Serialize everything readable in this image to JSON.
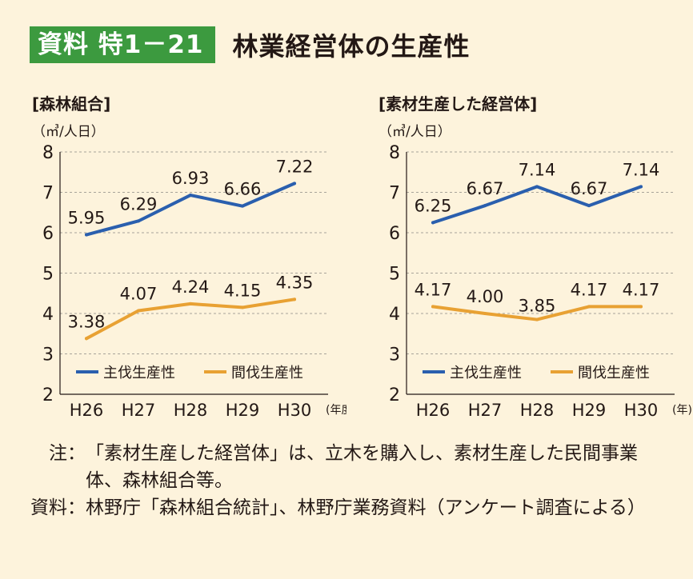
{
  "header": {
    "badge": "資料 特1－21",
    "title": "林業経営体の生産性"
  },
  "colors": {
    "badge_bg": "#3c9a3f",
    "background": "#fdf3dc",
    "series_main": "#2a5fae",
    "series_thinning": "#e8a133"
  },
  "chart_data": [
    {
      "type": "line",
      "title": "[森林組合]",
      "ylabel": "（㎥/人日）",
      "xunit": "(年度)",
      "categories": [
        "H26",
        "H27",
        "H28",
        "H29",
        "H30"
      ],
      "ylim": [
        2,
        8
      ],
      "yticks": [
        "2",
        "3",
        "4",
        "5",
        "6",
        "7",
        "8"
      ],
      "grid": true,
      "legend_position": "lower-center",
      "series": [
        {
          "name": "主伐生産性",
          "color": "#2a5fae",
          "values": [
            5.95,
            6.29,
            6.93,
            6.66,
            7.22
          ],
          "labels": [
            "5.95",
            "6.29",
            "6.93",
            "6.66",
            "7.22"
          ]
        },
        {
          "name": "間伐生産性",
          "color": "#e8a133",
          "values": [
            3.38,
            4.07,
            4.24,
            4.15,
            4.35
          ],
          "labels": [
            "3.38",
            "4.07",
            "4.24",
            "4.15",
            "4.35"
          ]
        }
      ]
    },
    {
      "type": "line",
      "title": "[素材生産した経営体]",
      "ylabel": "（㎥/人日）",
      "xunit": "(年)",
      "categories": [
        "H26",
        "H27",
        "H28",
        "H29",
        "H30"
      ],
      "ylim": [
        2,
        8
      ],
      "yticks": [
        "2",
        "3",
        "4",
        "5",
        "6",
        "7",
        "8"
      ],
      "grid": true,
      "legend_position": "lower-center",
      "series": [
        {
          "name": "主伐生産性",
          "color": "#2a5fae",
          "values": [
            6.25,
            6.67,
            7.14,
            6.67,
            7.14
          ],
          "labels": [
            "6.25",
            "6.67",
            "7.14",
            "6.67",
            "7.14"
          ]
        },
        {
          "name": "間伐生産性",
          "color": "#e8a133",
          "values": [
            4.17,
            4.0,
            3.85,
            4.17,
            4.17
          ],
          "labels": [
            "4.17",
            "4.00",
            "3.85",
            "4.17",
            "4.17"
          ]
        }
      ]
    }
  ],
  "notes": [
    {
      "label": "　注：",
      "text": "「素材生産した経営体」は、立木を購入し、素材生産した民間事業体、森林組合等。"
    },
    {
      "label": "資料：",
      "text": "林野庁「森林組合統計」、林野庁業務資料（アンケート調査による）"
    }
  ]
}
